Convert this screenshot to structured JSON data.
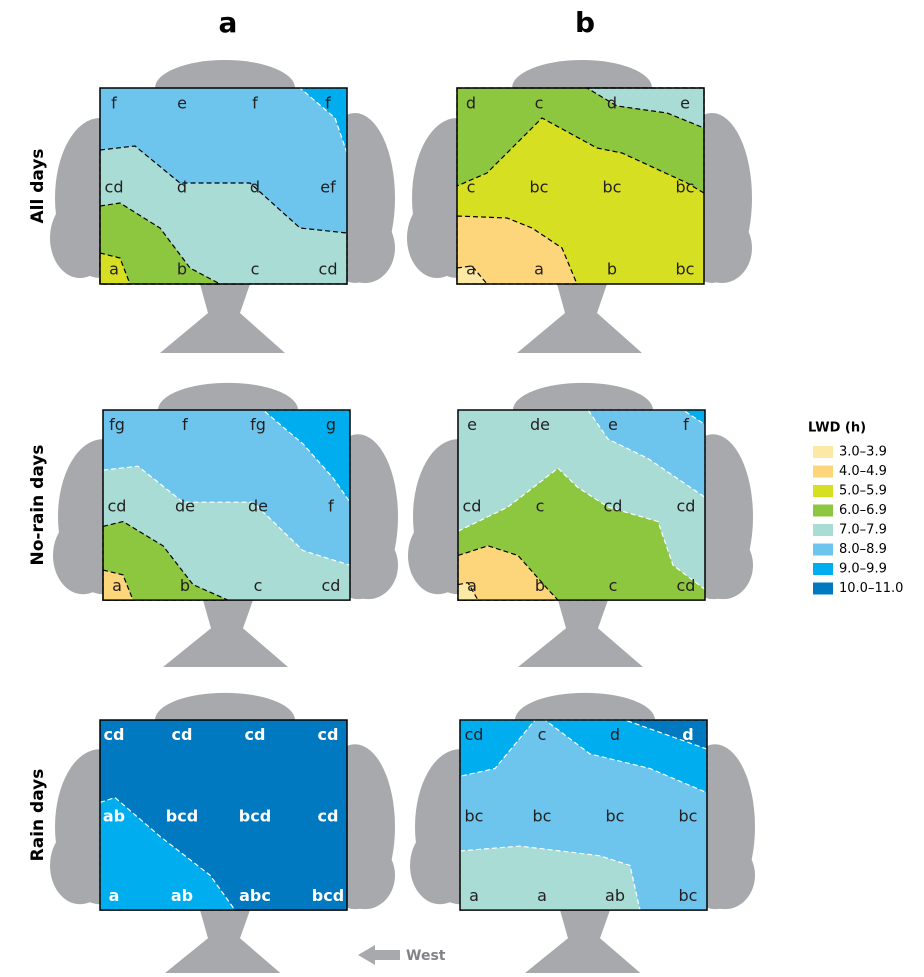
{
  "columns": [
    "a",
    "b"
  ],
  "rows": [
    "All days",
    "No-rain days",
    "Rain days"
  ],
  "panels": [
    {
      "labels": [
        [
          "f",
          "e",
          "f",
          "f"
        ],
        [
          "cd",
          "d",
          "d",
          "ef"
        ],
        [
          "a",
          "b",
          "c",
          "cd"
        ]
      ]
    },
    {
      "labels": [
        [
          "d",
          "c",
          "d",
          "e"
        ],
        [
          "c",
          "bc",
          "bc",
          "bc"
        ],
        [
          "a",
          "a",
          "b",
          "bc"
        ]
      ]
    },
    {
      "labels": [
        [
          "fg",
          "f",
          "fg",
          "g"
        ],
        [
          "cd",
          "de",
          "de",
          "f"
        ],
        [
          "a",
          "b",
          "c",
          "cd"
        ]
      ]
    },
    {
      "labels": [
        [
          "e",
          "de",
          "e",
          "f"
        ],
        [
          "cd",
          "c",
          "cd",
          "cd"
        ],
        [
          "a",
          "b",
          "c",
          "cd"
        ]
      ]
    },
    {
      "labels": [
        [
          "cd",
          "cd",
          "cd",
          "cd"
        ],
        [
          "ab",
          "bcd",
          "bcd",
          "cd"
        ],
        [
          "a",
          "ab",
          "abc",
          "bcd"
        ]
      ]
    },
    {
      "labels": [
        [
          "cd",
          "c",
          "d",
          "d"
        ],
        [
          "bc",
          "bc",
          "bc",
          "bc"
        ],
        [
          "a",
          "a",
          "ab",
          "bc"
        ]
      ]
    }
  ],
  "legend": {
    "title": "LWD (h)",
    "items": [
      {
        "label": "3.0–3.9",
        "color": "#fde9a6"
      },
      {
        "label": "4.0–4.9",
        "color": "#fdd57a"
      },
      {
        "label": "5.0–5.9",
        "color": "#d7df23"
      },
      {
        "label": "6.0–6.9",
        "color": "#8dc63f"
      },
      {
        "label": "7.0–7.9",
        "color": "#a8dcd4"
      },
      {
        "label": "8.0–8.9",
        "color": "#6dc5ee"
      },
      {
        "label": "9.0–9.9",
        "color": "#00aeef"
      },
      {
        "label": "10.0–11.0",
        "color": "#0079c1"
      }
    ]
  },
  "direction": "West"
}
